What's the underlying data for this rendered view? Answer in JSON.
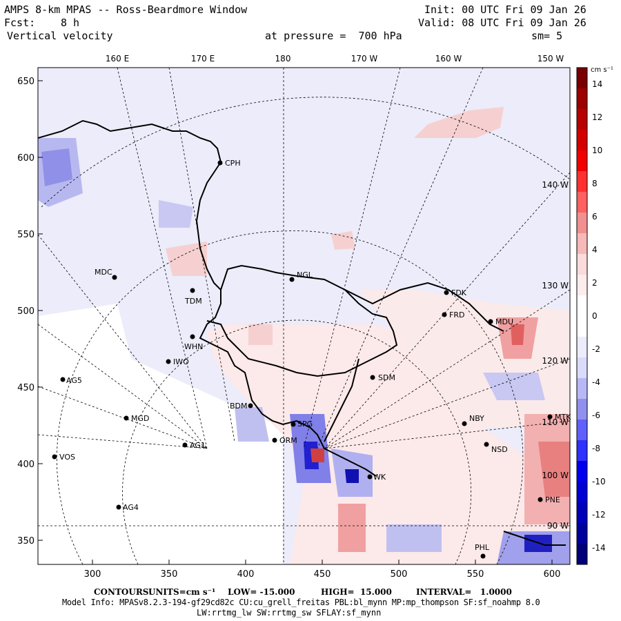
{
  "header": {
    "title": "AMPS 8-km MPAS -- Ross-Beardmore Window",
    "fcst_label": "Fcst:",
    "fcst_value": "8 h",
    "field": "Vertical velocity",
    "init": "Init: 00 UTC Fri 09 Jan 26",
    "valid": "Valid: 08 UTC Fri 09 Jan 26",
    "pressure": "at pressure =  700 hPa",
    "smooth": "sm= 5"
  },
  "top_axis": [
    "160 E",
    "170 E",
    "180",
    "170 W",
    "160 W",
    "150 W"
  ],
  "left_axis": [
    "650",
    "600",
    "550",
    "500",
    "450",
    "400",
    "350"
  ],
  "bottom_axis": [
    "300",
    "350",
    "400",
    "450",
    "500",
    "550",
    "600"
  ],
  "right_lon_labels": [
    "140 W",
    "130 W",
    "120 W",
    "110 W",
    "100 W",
    "90 W"
  ],
  "stations": [
    {
      "name": "CPH"
    },
    {
      "name": "NGL"
    },
    {
      "name": "MDC"
    },
    {
      "name": "TDM"
    },
    {
      "name": "FDK"
    },
    {
      "name": "FRD"
    },
    {
      "name": "MDU"
    },
    {
      "name": "WHN"
    },
    {
      "name": "IWO"
    },
    {
      "name": "AG5"
    },
    {
      "name": "SDM"
    },
    {
      "name": "BDM"
    },
    {
      "name": "MGD"
    },
    {
      "name": "SPG"
    },
    {
      "name": "NBY"
    },
    {
      "name": "MTK"
    },
    {
      "name": "ORM"
    },
    {
      "name": "AG1"
    },
    {
      "name": "NSD"
    },
    {
      "name": "VOS"
    },
    {
      "name": "AG4"
    },
    {
      "name": "PNE"
    },
    {
      "name": "PHL"
    },
    {
      "name": "WK"
    }
  ],
  "colorbar": {
    "units": "cm s⁻¹",
    "labels": [
      "14",
      "12",
      "10",
      "8",
      "6",
      "4",
      "2",
      "0",
      "-2",
      "-4",
      "-6",
      "-8",
      "-10",
      "-12",
      "-14"
    ],
    "colors": [
      "#7a0000",
      "#9c0000",
      "#b80000",
      "#d40000",
      "#f00000",
      "#ff3030",
      "#ff6060",
      "#f09090",
      "#f7b8b8",
      "#fadada",
      "#fcecec",
      "#ffffff",
      "#ffffff",
      "#ececfc",
      "#dadafa",
      "#b8b8f7",
      "#9090f0",
      "#6060ff",
      "#3030ff",
      "#0000f0",
      "#0000d4",
      "#0000b8",
      "#00009c",
      "#00007a"
    ]
  },
  "footer": {
    "contours_label": "CONTOURS:",
    "units_label": "UNITS=cm s⁻¹",
    "low": "LOW= -15.000",
    "high": "HIGH=  15.000",
    "interval": "INTERVAL=   1.0000",
    "model_info": "Model Info: MPASv8.2.3-194-gf29cd82c CU:cu_grell_freitas PBL:bl_mynn MP:mp_thompson SF:sf_noahmp 8.0",
    "model_info2": "LW:rrtmg_lw SW:rrtmg_sw SFLAY:sf_mynn"
  }
}
